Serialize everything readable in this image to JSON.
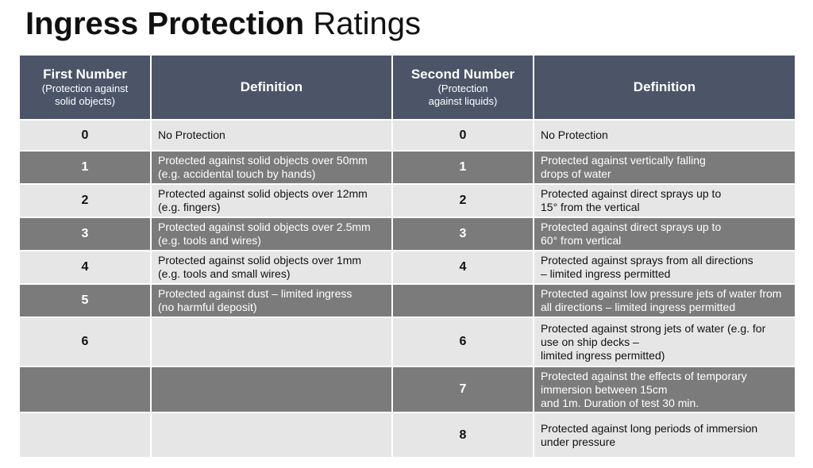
{
  "title": {
    "bold": "Ingress Protection",
    "regular": "Ratings"
  },
  "table": {
    "header": [
      [
        "First Number",
        "(Protection against",
        "solid objects)"
      ],
      [
        "Definition"
      ],
      [
        "Second Number",
        "(Protection",
        "against liquids)"
      ],
      [
        "Definition"
      ]
    ],
    "rows": [
      [
        [
          "0"
        ],
        [
          "No Protection"
        ],
        [
          "0"
        ],
        [
          "No Protection"
        ]
      ],
      [
        [
          "1"
        ],
        [
          "Protected against solid objects over 50mm",
          "(e.g. accidental touch by hands)"
        ],
        [
          "1"
        ],
        [
          "Protected against vertically falling",
          "drops of water"
        ]
      ],
      [
        [
          "2"
        ],
        [
          "Protected against solid objects over 12mm",
          "(e.g. fingers)"
        ],
        [
          "2"
        ],
        [
          "Protected against direct sprays up to",
          "15° from the vertical"
        ]
      ],
      [
        [
          "3"
        ],
        [
          "Protected against solid objects over 2.5mm",
          "(e.g. tools and wires)"
        ],
        [
          "3"
        ],
        [
          "Protected against direct sprays up to",
          "60° from vertical"
        ]
      ],
      [
        [
          "4"
        ],
        [
          "Protected against solid objects over 1mm",
          "(e.g. tools and small wires)"
        ],
        [
          "4"
        ],
        [
          "Protected against sprays from all directions",
          "– limited ingress permitted"
        ]
      ],
      [
        [
          "5"
        ],
        [
          "Protected against dust – limited ingress",
          "(no harmful deposit)"
        ],
        null,
        [
          "Protected against low pressure jets of water from",
          "all directions – limited ingress permitted"
        ]
      ],
      [
        [
          "6"
        ],
        null,
        [
          "6"
        ],
        [
          "Protected against strong jets of water (e.g. for",
          "use on ship decks –",
          "limited ingress permitted)"
        ]
      ],
      [
        null,
        null,
        [
          "7"
        ],
        [
          "Protected against the effects of temporary",
          "immersion between 15cm",
          "and 1m. Duration of test 30 min."
        ]
      ],
      [
        null,
        null,
        [
          "8"
        ],
        [
          "Protected against long periods of immersion",
          "under pressure"
        ]
      ]
    ]
  }
}
